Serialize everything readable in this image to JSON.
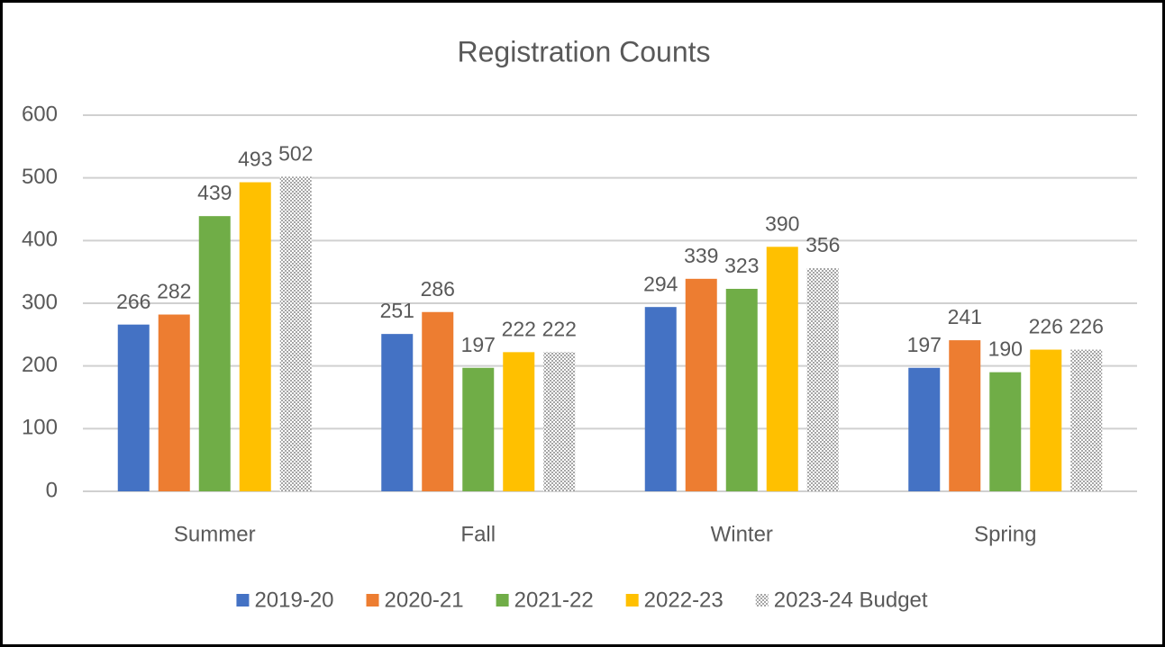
{
  "chart_data": {
    "type": "bar",
    "title": "Registration Counts",
    "categories": [
      "Summer",
      "Fall",
      "Winter",
      "Spring"
    ],
    "series": [
      {
        "name": "2019-20",
        "color": "#4472c4",
        "values": [
          266,
          251,
          294,
          197
        ]
      },
      {
        "name": "2020-21",
        "color": "#ed7d31",
        "values": [
          282,
          286,
          339,
          241
        ]
      },
      {
        "name": "2021-22",
        "color": "#70ad47",
        "values": [
          439,
          197,
          323,
          190
        ]
      },
      {
        "name": "2022-23",
        "color": "#ffc000",
        "values": [
          493,
          222,
          390,
          226
        ]
      },
      {
        "name": "2023-24 Budget",
        "color": "#bfbfbf",
        "pattern": "dotted",
        "values": [
          502,
          222,
          356,
          226
        ]
      }
    ],
    "ylim": [
      0,
      600
    ],
    "yticks": [
      0,
      100,
      200,
      300,
      400,
      500,
      600
    ],
    "grid": true,
    "legend": "bottom"
  }
}
